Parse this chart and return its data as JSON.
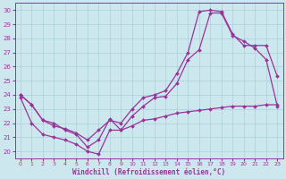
{
  "xlabel": "Windchill (Refroidissement éolien,°C)",
  "xlim": [
    -0.5,
    23.5
  ],
  "ylim": [
    19.5,
    30.5
  ],
  "yticks": [
    20,
    21,
    22,
    23,
    24,
    25,
    26,
    27,
    28,
    29,
    30
  ],
  "xticks": [
    0,
    1,
    2,
    3,
    4,
    5,
    6,
    7,
    8,
    9,
    10,
    11,
    12,
    13,
    14,
    15,
    16,
    17,
    18,
    19,
    20,
    21,
    22,
    23
  ],
  "background_color": "#cce8ee",
  "grid_color": "#b0d4da",
  "line_color": "#993399",
  "line_top": {
    "x": [
      0,
      1,
      2,
      3,
      4,
      5,
      6,
      7,
      8,
      9,
      10,
      11,
      12,
      13,
      14,
      15,
      16,
      17,
      18,
      19,
      20,
      21,
      22,
      23
    ],
    "y": [
      24.0,
      23.3,
      22.2,
      21.8,
      21.6,
      21.3,
      20.8,
      21.5,
      22.2,
      22.0,
      23.0,
      23.8,
      24.0,
      24.3,
      25.5,
      27.0,
      29.9,
      30.0,
      29.9,
      28.3,
      27.5,
      27.5,
      27.5,
      25.3
    ]
  },
  "line_mid": {
    "x": [
      0,
      1,
      2,
      3,
      4,
      5,
      6,
      7,
      8,
      9,
      10,
      11,
      12,
      13,
      14,
      15,
      16,
      17,
      18,
      19,
      20,
      21,
      22,
      23
    ],
    "y": [
      24.0,
      23.3,
      22.2,
      22.0,
      21.5,
      21.2,
      20.3,
      20.8,
      22.3,
      21.5,
      22.5,
      23.2,
      23.8,
      23.9,
      24.8,
      26.5,
      27.2,
      29.8,
      29.8,
      28.2,
      27.8,
      27.3,
      26.5,
      23.2
    ]
  },
  "line_bot": {
    "x": [
      0,
      1,
      2,
      3,
      4,
      5,
      6,
      7,
      8,
      9,
      10,
      11,
      12,
      13,
      14,
      15,
      16,
      17,
      18,
      19,
      20,
      21,
      22,
      23
    ],
    "y": [
      23.8,
      22.0,
      21.2,
      21.0,
      20.8,
      20.5,
      20.0,
      19.8,
      21.5,
      21.5,
      21.8,
      22.2,
      22.3,
      22.5,
      22.7,
      22.8,
      22.9,
      23.0,
      23.1,
      23.2,
      23.2,
      23.2,
      23.3,
      23.3
    ]
  }
}
